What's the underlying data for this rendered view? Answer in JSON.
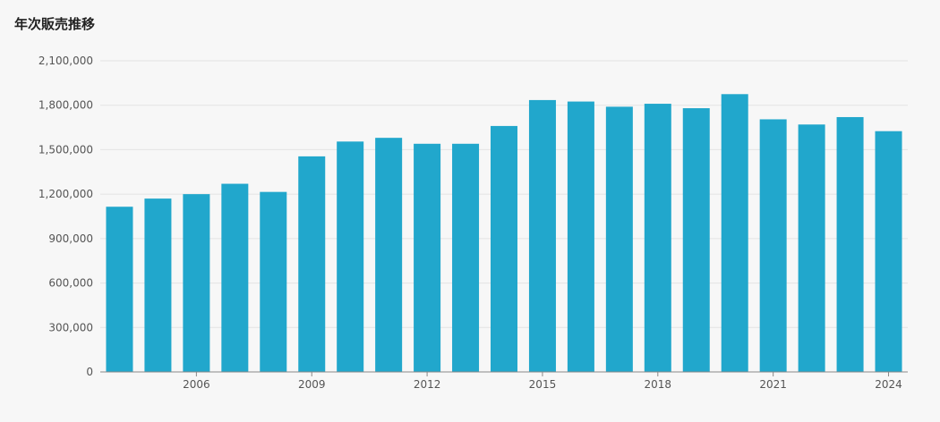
{
  "title": "年次販売推移",
  "colors": {
    "bar": "#21a7cc",
    "grid": "#e3e3e3",
    "axis": "#888888",
    "background": "#f7f7f7"
  },
  "chart_data": {
    "type": "bar",
    "title": "年次販売推移",
    "categories": [
      "2004",
      "2005",
      "2006",
      "2007",
      "2008",
      "2009",
      "2010",
      "2011",
      "2012",
      "2013",
      "2014",
      "2015",
      "2016",
      "2017",
      "2018",
      "2019",
      "2020",
      "2021",
      "2022",
      "2023",
      "2024"
    ],
    "values": [
      1115000,
      1170000,
      1200000,
      1270000,
      1215000,
      1455000,
      1555000,
      1580000,
      1540000,
      1540000,
      1660000,
      1835000,
      1825000,
      1790000,
      1810000,
      1780000,
      1875000,
      1705000,
      1670000,
      1720000,
      1625000
    ],
    "x_tick_labels": [
      "2006",
      "2009",
      "2012",
      "2015",
      "2018",
      "2021",
      "2024"
    ],
    "y_ticks": [
      0,
      300000,
      600000,
      900000,
      1200000,
      1500000,
      1800000,
      2100000
    ],
    "y_tick_labels": [
      "0",
      "300,000",
      "600,000",
      "900,000",
      "1,200,000",
      "1,500,000",
      "1,800,000",
      "2,100,000"
    ],
    "ylim": [
      0,
      2100000
    ],
    "xlabel": "",
    "ylabel": "",
    "grid": true,
    "legend": "none"
  }
}
